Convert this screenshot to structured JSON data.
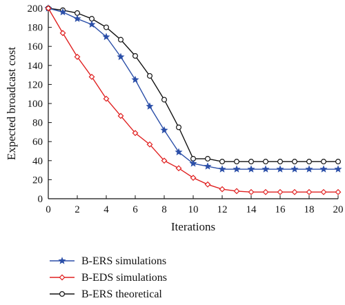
{
  "chart_data": {
    "type": "line",
    "xlabel": "Iterations",
    "ylabel": "Expected broadcast cost",
    "xlim": [
      0,
      20
    ],
    "ylim": [
      0,
      200
    ],
    "xticks": [
      0,
      2,
      4,
      6,
      8,
      10,
      12,
      14,
      16,
      18,
      20
    ],
    "yticks": [
      0,
      20,
      40,
      60,
      80,
      100,
      120,
      140,
      160,
      180,
      200
    ],
    "grid": false,
    "legend_position": "bottom-left (below plot)",
    "x": [
      0,
      1,
      2,
      3,
      4,
      5,
      6,
      7,
      8,
      9,
      10,
      11,
      12,
      13,
      14,
      15,
      16,
      17,
      18,
      19,
      20
    ],
    "series": [
      {
        "name": "B-ERS simulations",
        "color": "#2b4fa8",
        "marker": "star",
        "values": [
          200,
          196,
          189,
          183,
          170,
          149,
          125,
          97,
          72,
          49,
          37,
          34,
          31,
          31,
          31,
          31,
          31,
          31,
          31,
          31,
          31
        ]
      },
      {
        "name": "B-EDS simulations",
        "color": "#e02020",
        "marker": "diamond",
        "values": [
          200,
          174,
          149,
          128,
          105,
          87,
          69,
          57,
          40,
          32,
          22,
          15,
          10,
          8,
          7,
          7,
          7,
          7,
          7,
          7,
          7
        ]
      },
      {
        "name": "B-ERS theoretical",
        "color": "#111111",
        "marker": "circle",
        "values": [
          200,
          198,
          195,
          189,
          180,
          167,
          150,
          129,
          104,
          75,
          42,
          42,
          39,
          39,
          39,
          39,
          39,
          39,
          39,
          39,
          39
        ]
      }
    ]
  }
}
